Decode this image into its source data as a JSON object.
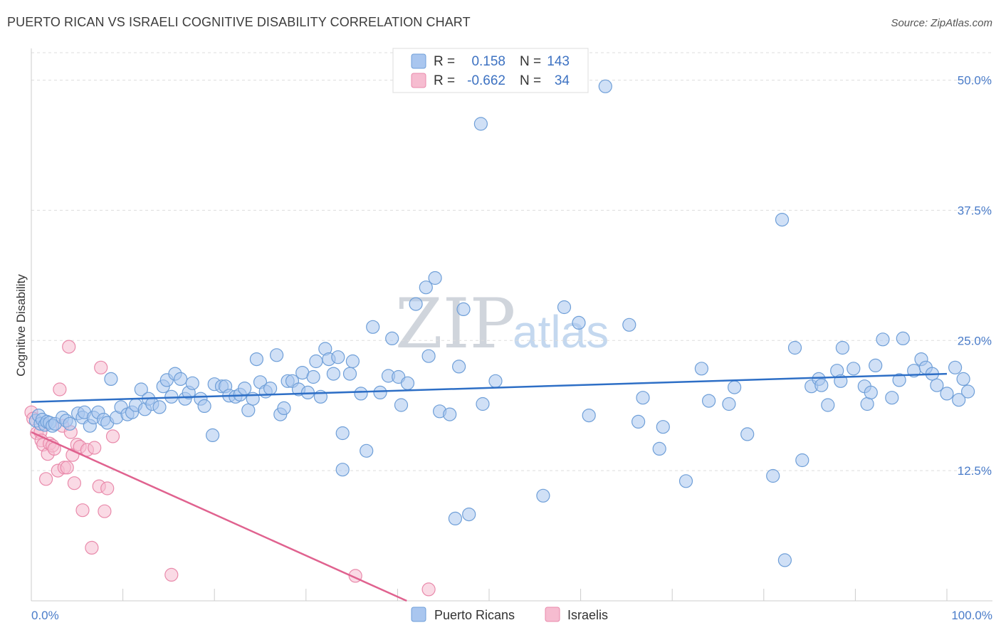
{
  "header": {
    "title": "PUERTO RICAN VS ISRAELI COGNITIVE DISABILITY CORRELATION CHART",
    "source": "Source: ZipAtlas.com"
  },
  "watermark": {
    "zip": "ZIP",
    "atlas": "atlas"
  },
  "legend": {
    "rows": [
      {
        "r_label": "R =",
        "r_value": "0.158",
        "n_label": "N =",
        "n_value": "143"
      },
      {
        "r_label": "R =",
        "r_value": "-0.662",
        "n_label": "N =",
        "n_value": "34"
      }
    ]
  },
  "bottom_legend": [
    "Puerto Ricans",
    "Israelis"
  ],
  "colors": {
    "blue_fill": "#a9c6ef",
    "blue_stroke": "#6f9fd8",
    "blue_line": "#2e6fc6",
    "pink_fill": "#f6bcd0",
    "pink_stroke": "#e98aab",
    "pink_line": "#e0628f",
    "grid": "#dddddd",
    "tick_text": "#4a7cc9"
  },
  "chart_data": {
    "type": "scatter",
    "title": "PUERTO RICAN VS ISRAELI COGNITIVE DISABILITY CORRELATION CHART",
    "xlabel": "",
    "ylabel": "Cognitive Disability",
    "xlim": [
      0,
      100
    ],
    "ylim": [
      0,
      52.5
    ],
    "x_tick_labels": [
      "0.0%",
      "100.0%"
    ],
    "y_ticks": [
      12.5,
      25.0,
      37.5,
      50.0
    ],
    "y_tick_labels": [
      "12.5%",
      "25.0%",
      "37.5%",
      "50.0%"
    ],
    "grid": true,
    "series": [
      {
        "name": "Puerto Ricans",
        "r": 0.158,
        "n": 143,
        "trend": {
          "x": [
            0,
            100
          ],
          "y": [
            19.1,
            21.8
          ]
        },
        "points": [
          [
            0.5,
            17.3
          ],
          [
            0.8,
            17.8
          ],
          [
            1.0,
            17.0
          ],
          [
            1.2,
            17.4
          ],
          [
            1.5,
            16.9
          ],
          [
            1.7,
            17.2
          ],
          [
            2.0,
            17.1
          ],
          [
            2.3,
            16.8
          ],
          [
            2.6,
            17.0
          ],
          [
            3.4,
            17.6
          ],
          [
            3.8,
            17.3
          ],
          [
            4.2,
            17.0
          ],
          [
            5.1,
            18.0
          ],
          [
            5.6,
            17.6
          ],
          [
            5.8,
            18.1
          ],
          [
            6.4,
            16.8
          ],
          [
            6.8,
            17.6
          ],
          [
            7.3,
            18.1
          ],
          [
            7.9,
            17.4
          ],
          [
            8.3,
            17.1
          ],
          [
            8.7,
            21.3
          ],
          [
            9.3,
            17.6
          ],
          [
            9.8,
            18.6
          ],
          [
            10.5,
            17.9
          ],
          [
            11.0,
            18.1
          ],
          [
            11.4,
            18.8
          ],
          [
            12.0,
            20.3
          ],
          [
            12.4,
            18.4
          ],
          [
            12.8,
            19.4
          ],
          [
            13.2,
            18.9
          ],
          [
            14.0,
            18.6
          ],
          [
            14.4,
            20.6
          ],
          [
            14.8,
            21.2
          ],
          [
            15.3,
            19.6
          ],
          [
            15.7,
            21.8
          ],
          [
            16.3,
            21.3
          ],
          [
            16.8,
            19.4
          ],
          [
            17.2,
            20.0
          ],
          [
            17.6,
            20.9
          ],
          [
            18.5,
            19.4
          ],
          [
            18.9,
            18.7
          ],
          [
            19.8,
            15.9
          ],
          [
            20.0,
            20.8
          ],
          [
            20.8,
            20.6
          ],
          [
            21.2,
            20.6
          ],
          [
            21.6,
            19.7
          ],
          [
            22.3,
            19.6
          ],
          [
            22.8,
            19.8
          ],
          [
            23.3,
            20.4
          ],
          [
            23.7,
            18.3
          ],
          [
            24.2,
            19.4
          ],
          [
            24.6,
            23.2
          ],
          [
            25.0,
            21.0
          ],
          [
            25.6,
            20.1
          ],
          [
            26.1,
            20.4
          ],
          [
            26.8,
            23.6
          ],
          [
            27.2,
            17.9
          ],
          [
            27.6,
            18.5
          ],
          [
            28.0,
            21.1
          ],
          [
            28.5,
            21.1
          ],
          [
            29.2,
            20.3
          ],
          [
            29.6,
            21.9
          ],
          [
            30.2,
            20.0
          ],
          [
            30.8,
            21.5
          ],
          [
            31.1,
            23.0
          ],
          [
            31.6,
            19.6
          ],
          [
            32.1,
            24.2
          ],
          [
            32.5,
            23.2
          ],
          [
            33.0,
            21.8
          ],
          [
            33.5,
            23.4
          ],
          [
            34.0,
            16.1
          ],
          [
            34.0,
            12.6
          ],
          [
            34.8,
            21.8
          ],
          [
            35.1,
            23.0
          ],
          [
            36.0,
            19.9
          ],
          [
            36.6,
            14.4
          ],
          [
            37.3,
            26.3
          ],
          [
            38.1,
            20.0
          ],
          [
            39.0,
            21.6
          ],
          [
            39.4,
            25.2
          ],
          [
            40.1,
            21.5
          ],
          [
            40.4,
            18.8
          ],
          [
            41.1,
            20.9
          ],
          [
            42.0,
            28.5
          ],
          [
            43.1,
            30.1
          ],
          [
            43.4,
            23.5
          ],
          [
            44.1,
            31.0
          ],
          [
            44.6,
            18.2
          ],
          [
            45.7,
            17.9
          ],
          [
            46.3,
            7.9
          ],
          [
            46.7,
            22.5
          ],
          [
            47.2,
            28.0
          ],
          [
            47.8,
            8.3
          ],
          [
            49.1,
            45.8
          ],
          [
            49.3,
            18.9
          ],
          [
            50.7,
            21.1
          ],
          [
            55.9,
            10.1
          ],
          [
            58.2,
            28.2
          ],
          [
            59.8,
            26.7
          ],
          [
            60.9,
            17.8
          ],
          [
            62.7,
            49.4
          ],
          [
            65.3,
            26.5
          ],
          [
            66.3,
            17.2
          ],
          [
            66.8,
            19.5
          ],
          [
            68.6,
            14.6
          ],
          [
            69.0,
            16.7
          ],
          [
            71.5,
            11.5
          ],
          [
            73.2,
            22.3
          ],
          [
            74.0,
            19.2
          ],
          [
            76.2,
            18.9
          ],
          [
            76.8,
            20.5
          ],
          [
            78.2,
            16.0
          ],
          [
            81.0,
            12.0
          ],
          [
            82.0,
            36.6
          ],
          [
            82.3,
            3.9
          ],
          [
            83.4,
            24.3
          ],
          [
            84.2,
            13.5
          ],
          [
            85.2,
            20.6
          ],
          [
            86.0,
            21.3
          ],
          [
            86.3,
            20.7
          ],
          [
            87.0,
            18.8
          ],
          [
            88.0,
            22.1
          ],
          [
            88.4,
            21.1
          ],
          [
            88.6,
            24.3
          ],
          [
            89.8,
            22.3
          ],
          [
            91.0,
            20.6
          ],
          [
            91.3,
            18.9
          ],
          [
            91.7,
            20.0
          ],
          [
            92.2,
            22.6
          ],
          [
            93.0,
            25.1
          ],
          [
            94.0,
            19.5
          ],
          [
            94.8,
            21.2
          ],
          [
            95.2,
            25.2
          ],
          [
            96.4,
            22.1
          ],
          [
            97.2,
            23.2
          ],
          [
            97.7,
            22.4
          ],
          [
            98.4,
            21.8
          ],
          [
            98.9,
            20.7
          ],
          [
            100.0,
            19.9
          ],
          [
            100.9,
            22.4
          ],
          [
            101.3,
            19.3
          ],
          [
            101.8,
            21.3
          ],
          [
            102.3,
            20.1
          ]
        ]
      },
      {
        "name": "Israelis",
        "r": -0.662,
        "n": 34,
        "trend": {
          "x": [
            0,
            41
          ],
          "y": [
            16.2,
            0
          ]
        },
        "points": [
          [
            0.0,
            18.1
          ],
          [
            0.2,
            17.5
          ],
          [
            0.6,
            16.1
          ],
          [
            1.0,
            16.2
          ],
          [
            1.1,
            15.4
          ],
          [
            1.3,
            15.0
          ],
          [
            1.6,
            11.7
          ],
          [
            1.8,
            14.1
          ],
          [
            2.0,
            15.1
          ],
          [
            2.3,
            14.9
          ],
          [
            2.5,
            14.6
          ],
          [
            2.9,
            12.5
          ],
          [
            3.1,
            20.3
          ],
          [
            3.4,
            16.8
          ],
          [
            3.6,
            12.8
          ],
          [
            3.9,
            12.8
          ],
          [
            4.1,
            24.4
          ],
          [
            4.3,
            16.2
          ],
          [
            4.5,
            14.0
          ],
          [
            4.7,
            11.3
          ],
          [
            5.0,
            15.0
          ],
          [
            5.3,
            14.8
          ],
          [
            5.6,
            8.7
          ],
          [
            6.1,
            14.5
          ],
          [
            6.6,
            5.1
          ],
          [
            6.9,
            14.7
          ],
          [
            7.4,
            11.0
          ],
          [
            7.6,
            22.4
          ],
          [
            8.0,
            8.6
          ],
          [
            8.3,
            10.8
          ],
          [
            8.9,
            15.8
          ],
          [
            15.3,
            2.5
          ],
          [
            35.4,
            2.4
          ],
          [
            43.4,
            1.1
          ]
        ]
      }
    ]
  }
}
